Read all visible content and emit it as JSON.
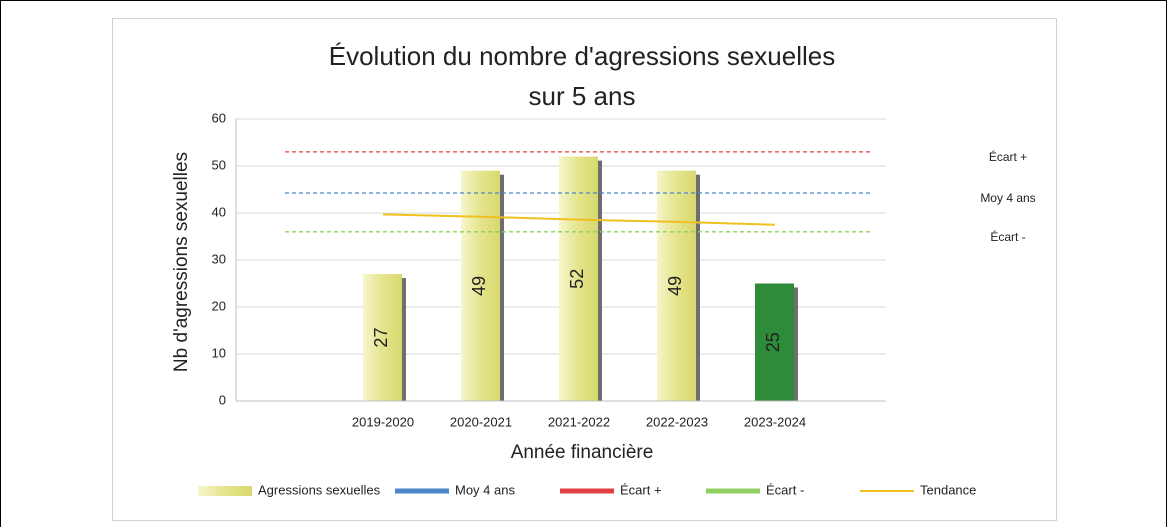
{
  "chart_data": {
    "type": "bar",
    "title": [
      "Évolution du nombre d'agressions sexuelles",
      "sur 5 ans"
    ],
    "y_label": "Nb d'agressions sexuelles",
    "x_label": "Année financière",
    "categories": [
      null,
      "2019-2020",
      "2020-2021",
      "2021-2022",
      "2022-2023",
      "2023-2024",
      null
    ],
    "ylim": [
      0,
      60
    ],
    "yticks": [
      0,
      10,
      20,
      30,
      40,
      50,
      60
    ],
    "grid": true,
    "legend": "bottom",
    "series": [
      {
        "name": "Agressions sexuelles",
        "type": "bar",
        "color": "#e4e48c",
        "colors": [
          null,
          "#e4e48c",
          "#e4e48c",
          "#e4e48c",
          "#e4e48c",
          "#2e8b3a"
        ],
        "values": [
          null,
          27,
          49,
          52,
          49,
          25,
          null
        ]
      },
      {
        "name": "Moy 4 ans",
        "type": "hline",
        "color": "#4a86c8",
        "label": "Moy 4 ans",
        "values": [
          44.25,
          44.25,
          44.25,
          44.25,
          44.25,
          44.25,
          44.25
        ]
      },
      {
        "name": "Écart +",
        "type": "hline",
        "color": "#e04040",
        "label": "Écart +",
        "values": [
          53,
          53,
          53,
          53,
          53,
          53,
          53
        ]
      },
      {
        "name": "Écart -",
        "type": "hline",
        "color": "#8fd060",
        "label": "Écart -",
        "values": [
          36,
          36,
          36,
          36,
          36,
          36,
          36
        ]
      },
      {
        "name": "Tendance",
        "type": "line",
        "color": "#f0c020",
        "values": [
          null,
          39.7,
          39.2,
          38.6,
          38.1,
          37.5,
          null
        ]
      }
    ]
  }
}
